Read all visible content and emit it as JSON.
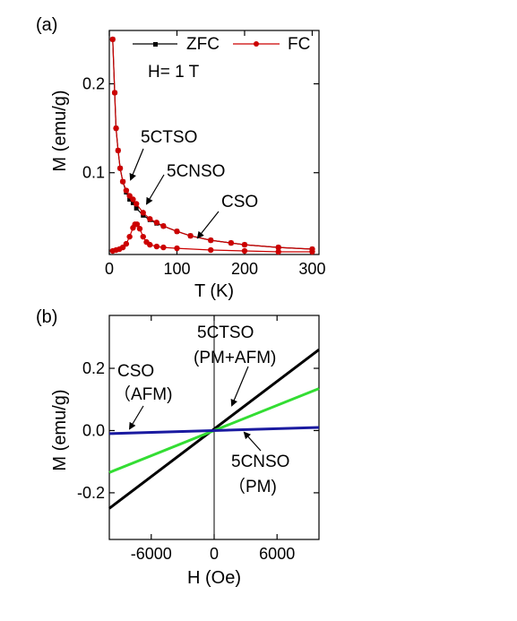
{
  "chart_data": [
    {
      "panel_label": "(a)",
      "type": "scatter",
      "xlabel": "T (K)",
      "ylabel": "M (emu/g)",
      "xlim": [
        0,
        310
      ],
      "ylim": [
        0.008,
        0.26
      ],
      "xticks": [
        0,
        100,
        200,
        300
      ],
      "xtick_labels": [
        "0",
        "100",
        "200",
        "300"
      ],
      "yticks": [
        0.1,
        0.2
      ],
      "ytick_labels": [
        "0.1",
        "0.2"
      ],
      "legend_placement": "top-right",
      "field_label": "H= 1 T",
      "legend": [
        {
          "name": "ZFC",
          "color": "#000000",
          "marker": "square"
        },
        {
          "name": "FC",
          "color": "#cc0000",
          "marker": "circle"
        }
      ],
      "annotations": [
        {
          "text": "5CTSO",
          "arrow_to": [
            40,
            0.068
          ]
        },
        {
          "text": "5CNSO",
          "arrow_to": [
            60,
            0.06
          ]
        },
        {
          "text": "CSO",
          "arrow_to": [
            150,
            0.018
          ]
        }
      ],
      "series": [
        {
          "name": "ZFC",
          "color": "#000000",
          "T": [
            5,
            8,
            10,
            13,
            16,
            20,
            25,
            30,
            35,
            40,
            50,
            60,
            70,
            80,
            100,
            120,
            150,
            180,
            200,
            250,
            300
          ],
          "M": [
            0.25,
            0.19,
            0.15,
            0.125,
            0.105,
            0.09,
            0.078,
            0.07,
            0.066,
            0.06,
            0.052,
            0.047,
            0.043,
            0.04,
            0.034,
            0.029,
            0.024,
            0.021,
            0.019,
            0.016,
            0.014
          ]
        },
        {
          "name": "FC",
          "color": "#cc0000",
          "T": [
            5,
            8,
            10,
            13,
            16,
            20,
            25,
            30,
            35,
            40,
            50,
            60,
            70,
            80,
            100,
            120,
            150,
            180,
            200,
            250,
            300
          ],
          "M": [
            0.25,
            0.19,
            0.15,
            0.125,
            0.105,
            0.09,
            0.08,
            0.074,
            0.07,
            0.065,
            0.055,
            0.048,
            0.044,
            0.04,
            0.034,
            0.029,
            0.024,
            0.021,
            0.019,
            0.016,
            0.014
          ]
        },
        {
          "name": "CSO",
          "color": "#cc0000",
          "T": [
            5,
            10,
            15,
            20,
            25,
            30,
            35,
            38,
            41,
            45,
            50,
            55,
            60,
            70,
            80,
            100,
            150,
            200,
            250,
            300
          ],
          "M": [
            0.012,
            0.013,
            0.014,
            0.016,
            0.02,
            0.028,
            0.038,
            0.042,
            0.042,
            0.037,
            0.028,
            0.022,
            0.019,
            0.017,
            0.016,
            0.015,
            0.013,
            0.012,
            0.011,
            0.011
          ]
        }
      ]
    },
    {
      "panel_label": "(b)",
      "type": "line",
      "xlabel": "H (Oe)",
      "ylabel": "M (emu/g)",
      "xlim": [
        -10000,
        10000
      ],
      "ylim": [
        -0.35,
        0.37
      ],
      "xticks": [
        -6000,
        0,
        6000
      ],
      "xtick_labels": [
        "-6000",
        "0",
        "6000"
      ],
      "yticks": [
        -0.2,
        0.0,
        0.2
      ],
      "ytick_labels": [
        "-0.2",
        "0.0",
        "0.2"
      ],
      "annotations": [
        {
          "lines": [
            "5CTSO",
            "(PM+AFM)"
          ],
          "arrow_to": [
            2200,
            0.04
          ]
        },
        {
          "lines": [
            "CSO",
            "（AFM)"
          ],
          "arrow_to": [
            -8200,
            -0.005
          ]
        },
        {
          "lines": [
            "5CNSO",
            "（PM)"
          ],
          "arrow_to": [
            2800,
            0.0
          ]
        }
      ],
      "series": [
        {
          "name": "5CTSO",
          "color": "#000000",
          "x": [
            -10000,
            10000
          ],
          "y": [
            -0.25,
            0.26
          ]
        },
        {
          "name": "5CNSO",
          "color": "#33dd33",
          "x": [
            -10000,
            10000
          ],
          "y": [
            -0.135,
            0.135
          ]
        },
        {
          "name": "CSO",
          "color": "#1a1aa0",
          "x": [
            -10000,
            10000
          ],
          "y": [
            -0.01,
            0.01
          ]
        }
      ]
    }
  ]
}
